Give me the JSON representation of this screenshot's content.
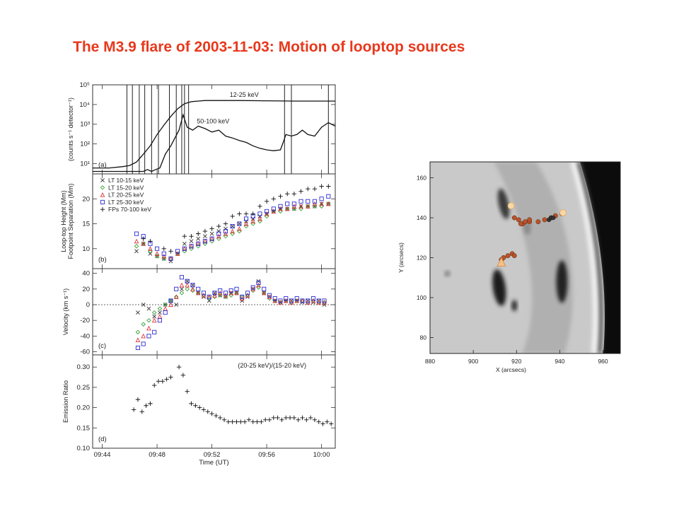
{
  "title": "The M3.9 flare of 2003-11-03: Motion of looptop sources",
  "colors": {
    "title": "#e8381c",
    "lt1": "#333333",
    "lt2": "#3aa13a",
    "lt3": "#e0353a",
    "lt4": "#2b2bd4",
    "fp": "#111111",
    "source": "#b8532a"
  },
  "chart_data": [
    {
      "type": "line",
      "panel": "(a)",
      "ylabel": "(counts s⁻¹ detector⁻¹)",
      "yscale": "log",
      "ylim": [
        3,
        100000
      ],
      "yticks": [
        {
          "v": 10,
          "t": "10¹"
        },
        {
          "v": 100,
          "t": "10²"
        },
        {
          "v": 1000,
          "t": "10³"
        },
        {
          "v": 10000,
          "t": "10⁴"
        },
        {
          "v": 100000,
          "t": "10⁵"
        }
      ],
      "xlim": [
        43.3,
        61.0
      ],
      "xticks": [
        44,
        48,
        52,
        56,
        60
      ],
      "vlines": [
        45.8,
        46.2,
        46.7,
        47.1,
        47.6,
        48.1,
        48.9,
        49.4,
        49.8,
        50.0,
        50.3,
        57.3,
        57.8,
        60.5
      ],
      "series": [
        {
          "name": "12-25 keV",
          "x": [
            43.3,
            44.5,
            45.5,
            46.0,
            46.5,
            47.0,
            47.5,
            48.0,
            48.5,
            49.0,
            49.5,
            50.0,
            50.5,
            51.0,
            51.5,
            52.0,
            54,
            56,
            58,
            60,
            61
          ],
          "values": [
            6,
            6,
            7,
            8,
            12,
            30,
            80,
            300,
            900,
            2500,
            6000,
            11000,
            14000,
            15000,
            16000,
            16000,
            16000,
            15500,
            15000,
            15000,
            15000
          ]
        },
        {
          "name": "50-100 keV",
          "x": [
            43.3,
            45,
            46,
            46.5,
            47,
            47.3,
            47.6,
            47.9,
            48.2,
            48.6,
            49.0,
            49.3,
            49.6,
            49.9,
            50.2,
            50.6,
            51.0,
            51.5,
            52.0,
            52.5,
            53.0,
            53.5,
            54.0,
            54.5,
            55.0,
            55.5,
            56.0,
            56.5,
            57.0,
            57.2,
            57.4,
            57.8,
            58.2,
            58.6,
            59.0,
            59.5,
            60.0,
            60.5,
            61.0
          ],
          "values": [
            4,
            4,
            4,
            4,
            4,
            5,
            4,
            5,
            6,
            30,
            80,
            200,
            500,
            3000,
            700,
            500,
            800,
            600,
            400,
            500,
            250,
            200,
            150,
            120,
            80,
            60,
            50,
            45,
            50,
            120,
            300,
            250,
            300,
            500,
            300,
            250,
            700,
            1200,
            800
          ]
        }
      ],
      "annotations": [
        "12-25 keV",
        "50-100 keV"
      ]
    },
    {
      "type": "scatter",
      "panel": "(b)",
      "ylabel": "Loop-top Height (Mm) / Footpoint Separation (Mm)",
      "ylim": [
        6,
        25
      ],
      "yticks": [
        10,
        15,
        20
      ],
      "xlim": [
        43.3,
        61.0
      ],
      "xticks": [
        44,
        48,
        52,
        56,
        60
      ],
      "series": [
        {
          "name": "LT 10-15 keV",
          "x": [
            46.5,
            47.0,
            47.5,
            48.0,
            48.5,
            49.0,
            49.5,
            50.0,
            50.5,
            51.0,
            51.5,
            52.0,
            52.5,
            53.0,
            53.5,
            54.0,
            54.5,
            55.0,
            55.5,
            56.0,
            56.5,
            57.0,
            57.5,
            58.0,
            58.5,
            59.0,
            59.5,
            60.0,
            60.5
          ],
          "values": [
            9.5,
            11,
            9,
            8.5,
            8,
            7.5,
            9,
            11,
            11.5,
            12,
            12.5,
            13,
            13.5,
            14,
            14.5,
            15,
            15.5,
            16,
            16.5,
            17,
            17.5,
            18,
            18,
            18,
            18.5,
            18.5,
            18.5,
            19,
            19
          ]
        },
        {
          "name": "LT 15-20 keV",
          "x": [
            46.5,
            47.0,
            47.5,
            48.0,
            48.5,
            49.0,
            49.5,
            50.0,
            50.5,
            51.0,
            51.5,
            52.0,
            52.5,
            53.0,
            53.5,
            54.0,
            54.5,
            55.0,
            55.5,
            56.0,
            56.5,
            57.0,
            57.5,
            58.0,
            58.5,
            59.0,
            59.5,
            60.0,
            60.5
          ],
          "values": [
            10.5,
            11,
            9.5,
            8.5,
            8,
            8,
            9,
            9.5,
            10,
            10.5,
            11,
            11.5,
            12,
            12.5,
            13,
            13.5,
            14.5,
            15,
            15.5,
            16.5,
            17.5,
            17.5,
            18,
            18,
            18,
            18.5,
            18.5,
            18.5,
            19
          ]
        },
        {
          "name": "LT 20-25 keV",
          "x": [
            46.5,
            47.0,
            47.5,
            48.0,
            48.5,
            49.0,
            49.5,
            50.0,
            50.5,
            51.0,
            51.5,
            52.0,
            52.5,
            53.0,
            53.5,
            54.0,
            54.5,
            55.0,
            55.5,
            56.0,
            56.5,
            57.0,
            57.5,
            58.0,
            58.5,
            59.0,
            59.5,
            60.0,
            60.5
          ],
          "values": [
            11.5,
            11,
            10,
            9,
            8.5,
            8,
            9,
            10,
            10.5,
            11,
            11.5,
            12,
            12.5,
            13,
            13.5,
            14,
            15,
            15.5,
            16,
            17,
            17.5,
            18,
            18,
            18.5,
            18.5,
            18.5,
            19,
            19,
            19
          ]
        },
        {
          "name": "LT 25-30 keV",
          "x": [
            46.5,
            47.0,
            47.5,
            48.0,
            48.5,
            49.0,
            49.5,
            50.0,
            50.5,
            51.0,
            51.5,
            52.0,
            52.5,
            53.0,
            53.5,
            54.0,
            54.5,
            55.0,
            55.5,
            56.0,
            56.5,
            57.0,
            57.5,
            58.0,
            58.5,
            59.0,
            59.5,
            60.0,
            60.5
          ],
          "values": [
            13,
            12.5,
            11,
            10,
            9,
            8,
            9.5,
            10,
            10.5,
            11,
            11.5,
            12,
            13,
            13.5,
            14.5,
            15,
            16,
            16.5,
            17,
            17.5,
            18,
            18.5,
            19,
            19,
            19.5,
            19.5,
            19.5,
            20,
            20.5
          ]
        },
        {
          "name": "FPs 70-100 keV",
          "x": [
            47.0,
            47.5,
            48.5,
            49.0,
            50.0,
            50.5,
            51.0,
            51.5,
            52.0,
            52.5,
            53.0,
            53.5,
            54.0,
            54.5,
            55.0,
            55.5,
            56.0,
            56.5,
            57.0,
            57.5,
            58.0,
            58.5,
            59.0,
            59.5,
            60.0,
            60.5
          ],
          "values": [
            12,
            11.5,
            10,
            9.5,
            12.5,
            12.5,
            13,
            13.5,
            14,
            14.5,
            15,
            16.5,
            17,
            17,
            17,
            18.5,
            19.5,
            20,
            20.5,
            21,
            21,
            21.5,
            22,
            22,
            22.5,
            22.5
          ]
        }
      ],
      "legend": [
        "LT 10-15 keV",
        "LT 15-20 keV",
        "LT 20-25 keV",
        "LT 25-30 keV",
        "FPs 70-100 keV"
      ]
    },
    {
      "type": "scatter",
      "panel": "(c)",
      "ylabel": "Velocity (km s⁻¹)",
      "ylim": [
        -64,
        46
      ],
      "yticks": [
        -60,
        -40,
        -20,
        0,
        20,
        40
      ],
      "xlim": [
        43.3,
        61.0
      ],
      "xticks": [
        44,
        48,
        52,
        56,
        60
      ],
      "series": [
        {
          "name": "LT 10-15 keV",
          "x": [
            46.6,
            47.0,
            47.4,
            47.8,
            48.2,
            48.6,
            49.0,
            49.4,
            49.8,
            50.2,
            50.6,
            51.0,
            51.4,
            51.8,
            52.2,
            52.6,
            53.0,
            53.4,
            53.8,
            54.2,
            54.6,
            55.0,
            55.4,
            55.8,
            56.2,
            56.6,
            57.0,
            57.4,
            57.8,
            58.2,
            58.6,
            59.0,
            59.4,
            59.8,
            60.2
          ],
          "values": [
            -10,
            0,
            -5,
            -15,
            -10,
            0,
            5,
            0,
            20,
            30,
            25,
            15,
            10,
            5,
            15,
            12,
            10,
            15,
            15,
            5,
            10,
            20,
            30,
            15,
            10,
            5,
            3,
            5,
            5,
            5,
            3,
            5,
            3,
            5,
            0
          ]
        },
        {
          "name": "LT 15-20 keV",
          "x": [
            46.6,
            47.0,
            47.4,
            47.8,
            48.2,
            48.6,
            49.0,
            49.4,
            49.8,
            50.2,
            50.6,
            51.0,
            51.4,
            51.8,
            52.2,
            52.6,
            53.0,
            53.4,
            53.8,
            54.2,
            54.6,
            55.0,
            55.4,
            55.8,
            56.2,
            56.6,
            57.0,
            57.4,
            57.8,
            58.2,
            58.6,
            59.0,
            59.4,
            59.8,
            60.2
          ],
          "values": [
            -35,
            -25,
            -20,
            -10,
            -5,
            0,
            5,
            10,
            15,
            20,
            18,
            15,
            12,
            8,
            10,
            12,
            10,
            12,
            15,
            10,
            12,
            18,
            22,
            15,
            8,
            5,
            3,
            5,
            3,
            5,
            5,
            3,
            5,
            3,
            3
          ]
        },
        {
          "name": "LT 20-25 keV",
          "x": [
            46.6,
            47.0,
            47.4,
            47.8,
            48.2,
            48.6,
            49.0,
            49.4,
            49.8,
            50.2,
            50.6,
            51.0,
            51.4,
            51.8,
            52.2,
            52.6,
            53.0,
            53.4,
            53.8,
            54.2,
            54.6,
            55.0,
            55.4,
            55.8,
            56.2,
            56.6,
            57.0,
            57.4,
            57.8,
            58.2,
            58.6,
            59.0,
            59.4,
            59.8,
            60.2
          ],
          "values": [
            -45,
            -40,
            -30,
            -20,
            -15,
            -5,
            0,
            10,
            25,
            25,
            20,
            15,
            12,
            10,
            12,
            15,
            12,
            15,
            15,
            8,
            12,
            20,
            25,
            15,
            10,
            5,
            3,
            5,
            3,
            5,
            5,
            3,
            5,
            3,
            3
          ]
        },
        {
          "name": "LT 25-30 keV",
          "x": [
            46.6,
            47.0,
            47.4,
            47.8,
            48.2,
            48.6,
            49.0,
            49.4,
            49.8,
            50.2,
            50.6,
            51.0,
            51.4,
            51.8,
            52.2,
            52.6,
            53.0,
            53.4,
            53.8,
            54.2,
            54.6,
            55.0,
            55.4,
            55.8,
            56.2,
            56.6,
            57.0,
            57.4,
            57.8,
            58.2,
            58.6,
            59.0,
            59.4,
            59.8,
            60.2
          ],
          "values": [
            -55,
            -50,
            -40,
            -35,
            -20,
            -10,
            5,
            20,
            35,
            30,
            25,
            20,
            15,
            10,
            15,
            18,
            15,
            18,
            20,
            10,
            15,
            22,
            28,
            20,
            12,
            8,
            5,
            8,
            5,
            8,
            5,
            5,
            8,
            5,
            5
          ]
        }
      ]
    },
    {
      "type": "scatter",
      "panel": "(d)",
      "ylabel": "Emission Ratio",
      "annotation": "(20-25 keV)/(15-20 keV)",
      "ylim": [
        0.1,
        0.33
      ],
      "yticks": [
        0.1,
        0.15,
        0.2,
        0.25,
        0.3
      ],
      "xlim": [
        43.3,
        61.0
      ],
      "xticks": [
        44,
        48,
        52,
        56,
        60
      ],
      "ytick_labels": [
        "0.10",
        "0.15",
        "0.20",
        "0.25",
        "0.30"
      ],
      "xtick_labels": [
        "09:44",
        "09:48",
        "09:52",
        "09:56",
        "10:00"
      ],
      "xlabel": "Time (UT)",
      "x": [
        46.3,
        46.6,
        46.9,
        47.2,
        47.5,
        47.8,
        48.1,
        48.4,
        48.7,
        49.0,
        49.6,
        49.9,
        50.2,
        50.5,
        50.8,
        51.1,
        51.4,
        51.7,
        52.0,
        52.3,
        52.6,
        52.9,
        53.2,
        53.5,
        53.8,
        54.1,
        54.4,
        54.7,
        55.0,
        55.3,
        55.6,
        55.9,
        56.2,
        56.5,
        56.8,
        57.1,
        57.4,
        57.7,
        58.0,
        58.3,
        58.6,
        58.9,
        59.2,
        59.5,
        59.8,
        60.1,
        60.4,
        60.7
      ],
      "values": [
        0.195,
        0.22,
        0.19,
        0.205,
        0.21,
        0.255,
        0.265,
        0.265,
        0.27,
        0.275,
        0.3,
        0.28,
        0.24,
        0.21,
        0.205,
        0.2,
        0.195,
        0.19,
        0.185,
        0.18,
        0.175,
        0.17,
        0.165,
        0.165,
        0.165,
        0.165,
        0.165,
        0.17,
        0.165,
        0.165,
        0.165,
        0.17,
        0.17,
        0.175,
        0.175,
        0.17,
        0.175,
        0.175,
        0.175,
        0.17,
        0.175,
        0.17,
        0.175,
        0.17,
        0.165,
        0.16,
        0.165,
        0.16
      ]
    },
    {
      "type": "image",
      "xlabel": "X (arcsecs)",
      "ylabel": "Y (arcsecs)",
      "xlim": [
        880,
        968
      ],
      "ylim": [
        72,
        168
      ],
      "xticks": [
        880,
        900,
        920,
        940,
        960
      ],
      "yticks": [
        80,
        100,
        120,
        140,
        160
      ]
    }
  ]
}
